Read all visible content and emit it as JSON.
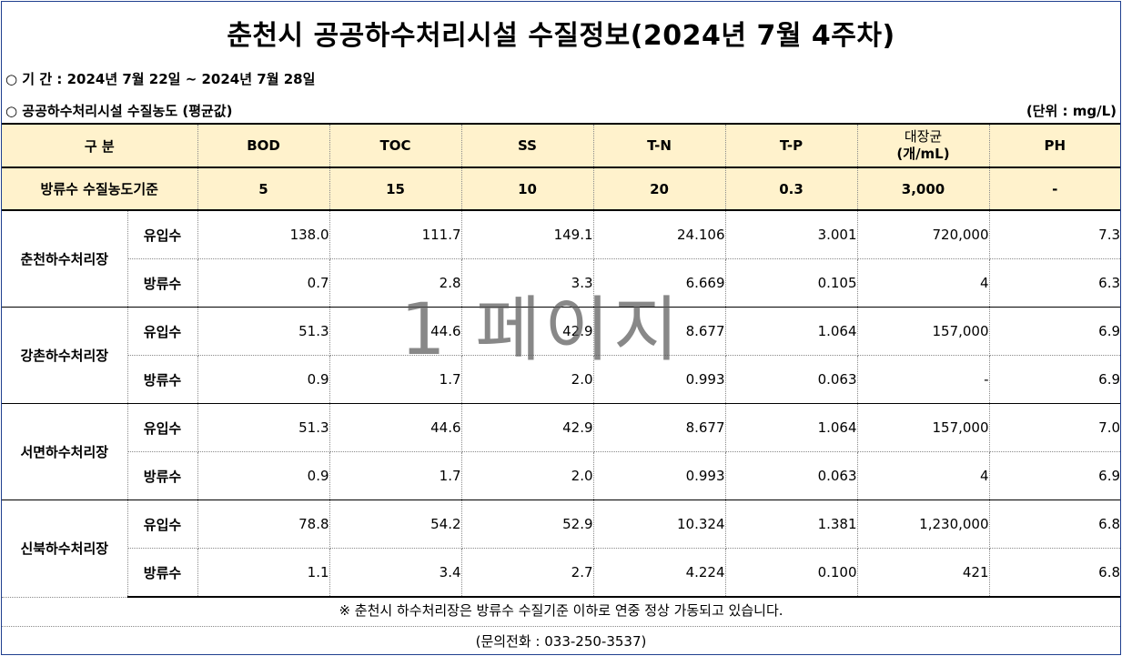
{
  "title": "춘천시 공공하수처리시설 수질정보(2024년 7월 4주차)",
  "period_text": "○ 기  간  :  2024년 7월 22일 ~ 2024년 7월 28일",
  "section_text": "○ 공공하수처리시설 수질농도 (평균값)",
  "unit_text": "(단위 : mg/L)",
  "header": {
    "category": "구  분",
    "bod": "BOD",
    "toc": "TOC",
    "ss": "SS",
    "tn": "T-N",
    "tp": "T-P",
    "coliform_line1": "대장균",
    "coliform_line2": "(개/mL)",
    "ph": "PH"
  },
  "standard": {
    "label": "방류수 수질농도기준",
    "bod": "5",
    "toc": "15",
    "ss": "10",
    "tn": "20",
    "tp": "0.3",
    "coliform": "3,000",
    "ph": "-"
  },
  "plants": [
    {
      "name": "춘천하수처리장",
      "rows": [
        {
          "kind": "유입수",
          "bod": "138.0",
          "toc": "111.7",
          "ss": "149.1",
          "tn": "24.106",
          "tp": "3.001",
          "coliform": "720,000",
          "ph": "7.3"
        },
        {
          "kind": "방류수",
          "bod": "0.7",
          "toc": "2.8",
          "ss": "3.3",
          "tn": "6.669",
          "tp": "0.105",
          "coliform": "4",
          "ph": "6.3"
        }
      ]
    },
    {
      "name": "강촌하수처리장",
      "rows": [
        {
          "kind": "유입수",
          "bod": "51.3",
          "toc": "44.6",
          "ss": "42.9",
          "tn": "8.677",
          "tp": "1.064",
          "coliform": "157,000",
          "ph": "6.9"
        },
        {
          "kind": "방류수",
          "bod": "0.9",
          "toc": "1.7",
          "ss": "2.0",
          "tn": "0.993",
          "tp": "0.063",
          "coliform": "-",
          "ph": "6.9"
        }
      ]
    },
    {
      "name": "서면하수처리장",
      "rows": [
        {
          "kind": "유입수",
          "bod": "51.3",
          "toc": "44.6",
          "ss": "42.9",
          "tn": "8.677",
          "tp": "1.064",
          "coliform": "157,000",
          "ph": "7.0"
        },
        {
          "kind": "방류수",
          "bod": "0.9",
          "toc": "1.7",
          "ss": "2.0",
          "tn": "0.993",
          "tp": "0.063",
          "coliform": "4",
          "ph": "6.9"
        }
      ]
    },
    {
      "name": "신북하수처리장",
      "rows": [
        {
          "kind": "유입수",
          "bod": "78.8",
          "toc": "54.2",
          "ss": "52.9",
          "tn": "10.324",
          "tp": "1.381",
          "coliform": "1,230,000",
          "ph": "6.8"
        },
        {
          "kind": "방류수",
          "bod": "1.1",
          "toc": "3.4",
          "ss": "2.7",
          "tn": "4.224",
          "tp": "0.100",
          "coliform": "421",
          "ph": "6.8"
        }
      ]
    }
  ],
  "footer_note": "※ 춘천시 하수처리장은 방류수 수질기준 이하로 연중 정상 가동되고 있습니다.",
  "contact": "(문의전화 : 033-250-3537)",
  "watermark": "1 페이지"
}
